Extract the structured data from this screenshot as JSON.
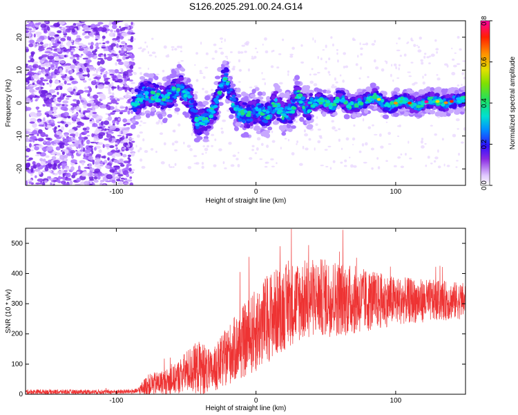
{
  "chart_data": [
    {
      "type": "heatmap",
      "title": "S126.2025.291.00.24.G14",
      "xlabel": "Height of straight line (km)",
      "ylabel": "Frequency (Hz)",
      "xlim": [
        -165,
        150
      ],
      "ylim": [
        -25,
        25
      ],
      "xticks": [
        -100,
        0,
        100
      ],
      "yticks": [
        -20,
        -10,
        0,
        10,
        20
      ],
      "colorbar": {
        "label": "Normalized spectral amplitude",
        "range": [
          0.0,
          0.8
        ],
        "ticks": [
          "0.0",
          "0.2",
          "0.4",
          "0.6",
          "0.8"
        ]
      },
      "noise_region": [
        -165,
        -88
      ],
      "ridge_track": [
        {
          "x": -88,
          "y": -1
        },
        {
          "x": -80,
          "y": 3
        },
        {
          "x": -72,
          "y": 2
        },
        {
          "x": -65,
          "y": 1
        },
        {
          "x": -55,
          "y": 5
        },
        {
          "x": -48,
          "y": 2
        },
        {
          "x": -42,
          "y": -6
        },
        {
          "x": -36,
          "y": -5
        },
        {
          "x": -30,
          "y": -2
        },
        {
          "x": -26,
          "y": 4
        },
        {
          "x": -22,
          "y": 8
        },
        {
          "x": -18,
          "y": 2
        },
        {
          "x": -12,
          "y": -3
        },
        {
          "x": -6,
          "y": -4
        },
        {
          "x": 0,
          "y": -2
        },
        {
          "x": 8,
          "y": -4
        },
        {
          "x": 14,
          "y": 0
        },
        {
          "x": 20,
          "y": -4
        },
        {
          "x": 26,
          "y": -2
        },
        {
          "x": 30,
          "y": 3
        },
        {
          "x": 36,
          "y": -2
        },
        {
          "x": 45,
          "y": 1
        },
        {
          "x": 55,
          "y": -1
        },
        {
          "x": 60,
          "y": 2
        },
        {
          "x": 66,
          "y": -1
        },
        {
          "x": 75,
          "y": 0
        },
        {
          "x": 85,
          "y": 2
        },
        {
          "x": 95,
          "y": -1
        },
        {
          "x": 105,
          "y": 1
        },
        {
          "x": 115,
          "y": -1
        },
        {
          "x": 125,
          "y": 1
        },
        {
          "x": 135,
          "y": 0
        },
        {
          "x": 145,
          "y": 1
        }
      ]
    },
    {
      "type": "line",
      "xlabel": "Height of straight line (km)",
      "ylabel": "SNR (10 * v/v)",
      "xlim": [
        -165,
        150
      ],
      "ylim": [
        0,
        550
      ],
      "xticks": [
        -100,
        0,
        100
      ],
      "yticks": [
        0,
        100,
        200,
        300,
        400,
        500
      ],
      "series": [
        {
          "name": "SNR",
          "color": "#ee3333",
          "envelope": [
            {
              "x": -165,
              "mean": 8,
              "amp": 8
            },
            {
              "x": -100,
              "mean": 8,
              "amp": 7
            },
            {
              "x": -85,
              "mean": 10,
              "amp": 9
            },
            {
              "x": -78,
              "mean": 30,
              "amp": 35
            },
            {
              "x": -60,
              "mean": 45,
              "amp": 45
            },
            {
              "x": -48,
              "mean": 80,
              "amp": 75
            },
            {
              "x": -40,
              "mean": 90,
              "amp": 90
            },
            {
              "x": -32,
              "mean": 70,
              "amp": 70
            },
            {
              "x": -20,
              "mean": 130,
              "amp": 100
            },
            {
              "x": -10,
              "mean": 170,
              "amp": 120
            },
            {
              "x": 0,
              "mean": 210,
              "amp": 140
            },
            {
              "x": 10,
              "mean": 260,
              "amp": 150
            },
            {
              "x": 25,
              "mean": 300,
              "amp": 140
            },
            {
              "x": 40,
              "mean": 320,
              "amp": 130
            },
            {
              "x": 55,
              "mean": 320,
              "amp": 130
            },
            {
              "x": 75,
              "mean": 310,
              "amp": 110
            },
            {
              "x": 100,
              "mean": 310,
              "amp": 80
            },
            {
              "x": 125,
              "mean": 310,
              "amp": 70
            },
            {
              "x": 150,
              "mean": 310,
              "amp": 60
            }
          ]
        }
      ]
    }
  ],
  "colors": {
    "snr_line": "#ee3333"
  }
}
